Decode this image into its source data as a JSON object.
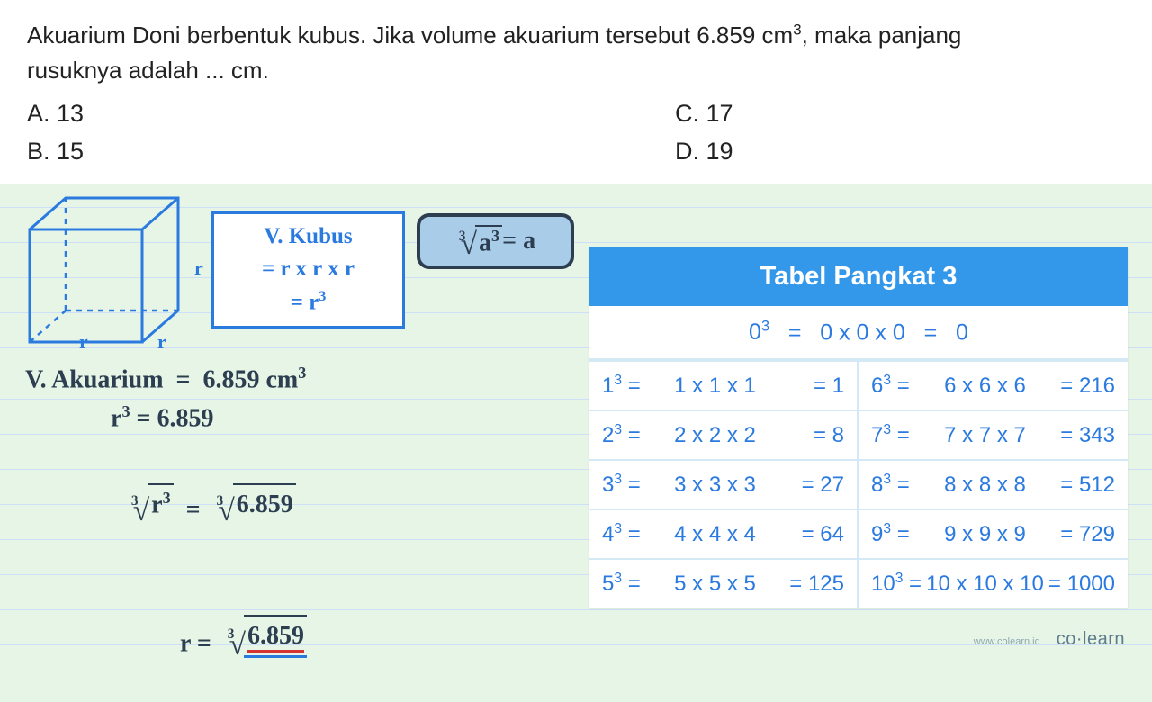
{
  "question": {
    "line1": "Akuarium Doni berbentuk kubus. Jika volume akuarium tersebut 6.859 cm",
    "line1_sup": "3",
    "line1_tail": ", maka panjang",
    "line2": "rusuknya adalah ... cm.",
    "optA": "A.  13",
    "optB": "B.  15",
    "optC": "C.  17",
    "optD": "D.  19"
  },
  "cube": {
    "label_r": "r",
    "stroke": "#2a7ae0"
  },
  "formula": {
    "title": "V. Kubus",
    "line2": "= r x r x r",
    "line3": "= r",
    "line3_sup": "3"
  },
  "root_identity": {
    "idx": "3",
    "radicand": "a",
    "radicand_sup": "3",
    "rhs": " = a"
  },
  "working": {
    "l1": "V. Akuarium  =  6.859 cm",
    "l1_sup": "3",
    "l2_lhs": "r",
    "l2_sup": "3",
    "l2_rhs": " = 6.859",
    "l3_idx": "3",
    "l3_rad1": "r",
    "l3_rad1_sup": "3",
    "l3_mid": "  =  ",
    "l3_rad2": "6.859",
    "l4_lhs": "r =  ",
    "l4_idx": "3",
    "l4_rad": "6.859"
  },
  "table": {
    "title": "Tabel Pangkat 3",
    "row0": {
      "base": "0",
      "expand": "0 x 0 x 0",
      "result": "0"
    },
    "rows": [
      {
        "n": "1",
        "expand": "1 x 1 x 1",
        "result": "1"
      },
      {
        "n": "6",
        "expand": "6 x 6 x 6",
        "result": "216"
      },
      {
        "n": "2",
        "expand": "2 x 2 x 2",
        "result": "8"
      },
      {
        "n": "7",
        "expand": "7 x 7 x 7",
        "result": "343"
      },
      {
        "n": "3",
        "expand": "3 x 3 x 3",
        "result": "27"
      },
      {
        "n": "8",
        "expand": "8 x 8 x 8",
        "result": "512"
      },
      {
        "n": "4",
        "expand": "4 x 4 x 4",
        "result": "64"
      },
      {
        "n": "9",
        "expand": "9 x 9 x 9",
        "result": "729"
      },
      {
        "n": "5",
        "expand": "5 x 5 x 5",
        "result": "125"
      },
      {
        "n": "10",
        "expand": "10 x 10 x 10",
        "result": "1000"
      }
    ]
  },
  "footer": {
    "site": "www.colearn.id",
    "brand": "co·learn"
  },
  "colors": {
    "bg": "#e6f5e6",
    "blue": "#2a7ae0",
    "table_header": "#3498ea",
    "dark": "#2c3e50"
  }
}
